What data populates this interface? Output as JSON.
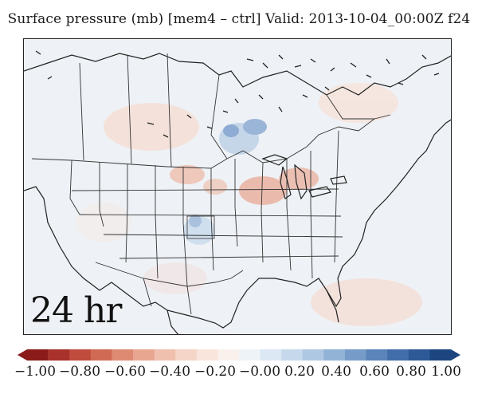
{
  "title": "Surface pressure (mb) [mem4 – ctrl]  Valid: 2013-10-04_00:00Z f24",
  "time_label": "24 hr",
  "colorbar": {
    "ticks": [
      "−1.00",
      "−0.80",
      "−0.60",
      "−0.40",
      "−0.20",
      "−0.00",
      "0.20",
      "0.40",
      "0.60",
      "0.80",
      "1.00"
    ],
    "range": [
      -1.0,
      1.0
    ],
    "bins": 20,
    "colors": [
      "#8b1a1a",
      "#a8322b",
      "#bf4c3c",
      "#d06a55",
      "#de8a73",
      "#e8a691",
      "#f0c0ae",
      "#f5d5c7",
      "#f9e5db",
      "#fbf1ec",
      "#eef3f8",
      "#dce8f3",
      "#c6d9ec",
      "#aec7e2",
      "#92b2d6",
      "#769bc8",
      "#5a84ba",
      "#416eaa",
      "#2d5a97",
      "#1d4680"
    ]
  },
  "map": {
    "background_color": "#eef1f5",
    "positive_color": "#e8a691",
    "negative_color": "#6e95c8"
  }
}
